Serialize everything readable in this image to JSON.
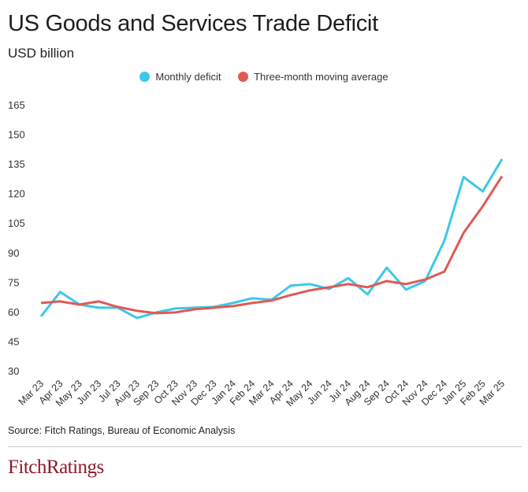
{
  "header": {
    "title": "US Goods and Services Trade Deficit",
    "subtitle": "USD billion"
  },
  "footer": {
    "source": "Source: Fitch Ratings, Bureau of Economic Analysis",
    "logo": "FitchRatings"
  },
  "colors": {
    "monthly": "#3cc8e8",
    "average": "#e05a55",
    "logo": "#8a1c2b"
  },
  "chart_data": {
    "type": "line",
    "title": "US Goods and Services Trade Deficit",
    "ylabel": "USD billion",
    "ylim": [
      30,
      165
    ],
    "yticks": [
      30,
      45,
      60,
      75,
      90,
      105,
      120,
      135,
      150,
      165
    ],
    "grid": false,
    "legend": "top-center",
    "categories": [
      "Mar 23",
      "Apr 23",
      "May 23",
      "Jun 23",
      "Jul 23",
      "Aug 23",
      "Sep 23",
      "Oct 23",
      "Nov 23",
      "Dec 23",
      "Jan 24",
      "Feb 24",
      "Mar 24",
      "Apr 24",
      "May 24",
      "Jun 24",
      "Jul 24",
      "Aug 24",
      "Sep 24",
      "Oct 24",
      "Nov 24",
      "Dec 24",
      "Jan 25",
      "Feb 25",
      "Mar 25"
    ],
    "series": [
      {
        "name": "Monthly deficit",
        "color": "#3cc8e8",
        "values": [
          57.6,
          70,
          63.6,
          62,
          62,
          56.8,
          59.6,
          61.6,
          62,
          62.4,
          64.4,
          66.8,
          66,
          73.2,
          74,
          71.5,
          77,
          68.8,
          82.3,
          71.2,
          75.5,
          96,
          128.3,
          121,
          137.4
        ]
      },
      {
        "name": "Three-month moving average",
        "color": "#e05a55",
        "values": [
          64.4,
          65.2,
          63.6,
          65.2,
          62.4,
          60.4,
          59.2,
          59.6,
          61.2,
          62,
          62.8,
          64.4,
          65.6,
          68.4,
          70.8,
          72.4,
          74,
          72.4,
          75.5,
          74,
          76.3,
          80.3,
          100,
          113.5,
          128.7
        ]
      }
    ]
  }
}
